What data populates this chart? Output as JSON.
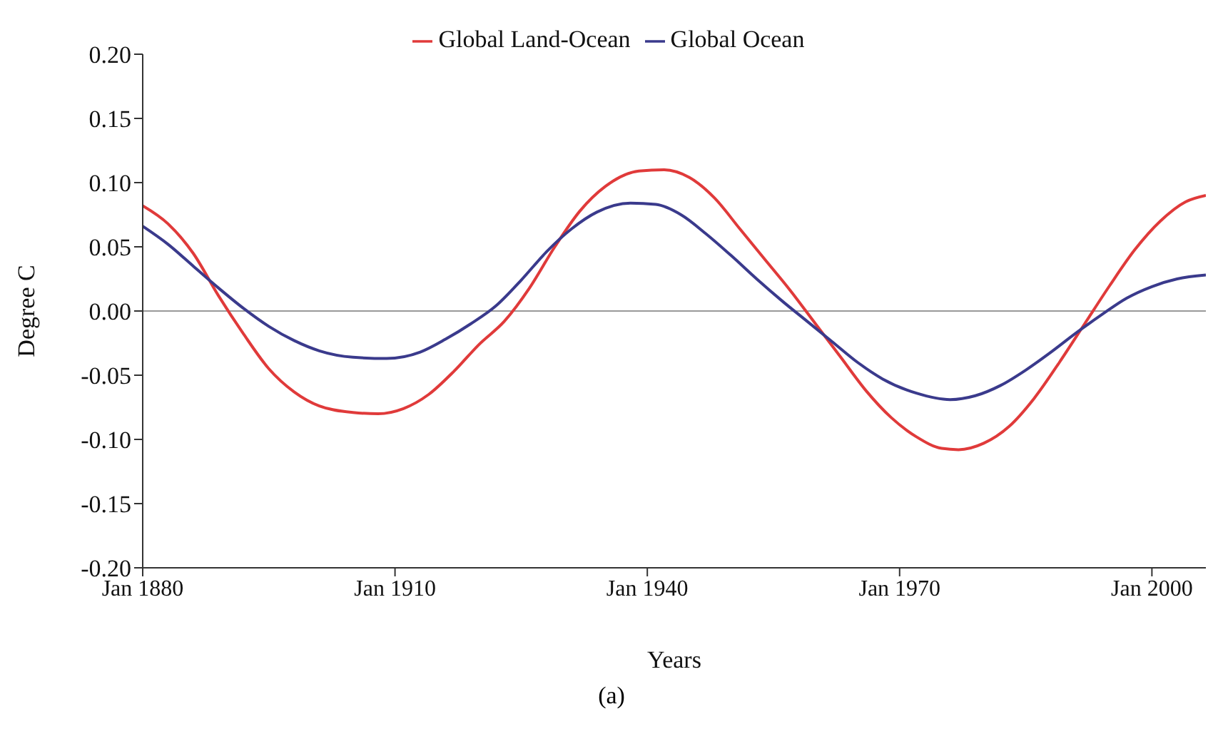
{
  "chart_data": {
    "type": "line",
    "xlabel": "Years",
    "ylabel": "Degree C",
    "annotations": [
      "(a)"
    ],
    "xlim": [
      "1880-01",
      "2006-06"
    ],
    "xticks": [
      {
        "value": "1880-01",
        "label": "Jan 1880"
      },
      {
        "value": "1910-01",
        "label": "Jan 1910"
      },
      {
        "value": "1940-01",
        "label": "Jan 1940"
      },
      {
        "value": "1970-01",
        "label": "Jan 1970"
      },
      {
        "value": "2000-01",
        "label": "Jan 2000"
      }
    ],
    "ylim": [
      -0.2,
      0.2
    ],
    "yticks": [
      {
        "value": -0.2,
        "label": "-0.20"
      },
      {
        "value": -0.15,
        "label": "-0.15"
      },
      {
        "value": -0.1,
        "label": "-0.10"
      },
      {
        "value": -0.05,
        "label": "-0.05"
      },
      {
        "value": 0,
        "label": "0.00"
      },
      {
        "value": 0.05,
        "label": "0.05"
      },
      {
        "value": 0.1,
        "label": "0.10"
      },
      {
        "value": 0.15,
        "label": "0.15"
      },
      {
        "value": 0.2,
        "label": "0.20"
      }
    ],
    "ref_lines": [
      {
        "axis": "y",
        "value": 0,
        "color": "#999999"
      }
    ],
    "legend": "top",
    "marker": "none",
    "series": [
      {
        "name": "Global Land-Ocean",
        "color": "#e03a3a",
        "x": [
          "1880-01",
          "1883-01",
          "1886-01",
          "1889-01",
          "1892-01",
          "1895-01",
          "1898-01",
          "1901-01",
          "1905-01",
          "1908-01",
          "1911-01",
          "1914-01",
          "1917-01",
          "1920-01",
          "1923-01",
          "1926-01",
          "1929-01",
          "1932-01",
          "1935-01",
          "1939-01",
          "1942-01",
          "1945-01",
          "1948-01",
          "1951-01",
          "1954-01",
          "1957-01",
          "1960-01",
          "1963-01",
          "1966-01",
          "1969-01",
          "1972-01",
          "1975-01",
          "1977-01",
          "1980-01",
          "1983-01",
          "1986-01",
          "1989-01",
          "1992-01",
          "1995-01",
          "1998-01",
          "2001-01",
          "2004-01",
          "2006-06"
        ],
        "values": [
          0.082,
          0.068,
          0.045,
          0.012,
          -0.018,
          -0.045,
          -0.063,
          -0.074,
          -0.079,
          -0.08,
          -0.076,
          -0.065,
          -0.047,
          -0.026,
          -0.008,
          0.018,
          0.05,
          0.078,
          0.097,
          0.109,
          0.11,
          0.104,
          0.088,
          0.064,
          0.04,
          0.016,
          -0.01,
          -0.036,
          -0.062,
          -0.083,
          -0.098,
          -0.107,
          -0.108,
          -0.103,
          -0.09,
          -0.068,
          -0.04,
          -0.01,
          0.02,
          0.048,
          0.07,
          0.085,
          0.09
        ]
      },
      {
        "name": "Global Ocean",
        "color": "#3a3a8c",
        "x": [
          "1880-01",
          "1883-01",
          "1886-01",
          "1889-01",
          "1892-01",
          "1895-01",
          "1898-01",
          "1901-01",
          "1905-01",
          "1909-01",
          "1913-01",
          "1916-01",
          "1919-01",
          "1922-01",
          "1925-01",
          "1928-01",
          "1931-01",
          "1934-01",
          "1938-01",
          "1941-01",
          "1944-01",
          "1947-01",
          "1950-01",
          "1953-01",
          "1956-01",
          "1959-01",
          "1962-01",
          "1965-01",
          "1968-01",
          "1972-01",
          "1976-01",
          "1979-01",
          "1982-01",
          "1985-01",
          "1988-01",
          "1991-01",
          "1994-01",
          "1997-01",
          "2000-01",
          "2003-01",
          "2006-06"
        ],
        "values": [
          0.066,
          0.052,
          0.035,
          0.018,
          0.002,
          -0.012,
          -0.023,
          -0.031,
          -0.036,
          -0.037,
          -0.032,
          -0.022,
          -0.01,
          0.004,
          0.024,
          0.046,
          0.064,
          0.077,
          0.084,
          0.083,
          0.075,
          0.06,
          0.043,
          0.025,
          0.008,
          -0.008,
          -0.024,
          -0.04,
          -0.053,
          -0.064,
          -0.069,
          -0.066,
          -0.058,
          -0.046,
          -0.032,
          -0.017,
          -0.003,
          0.01,
          0.019,
          0.025,
          0.028
        ]
      }
    ]
  }
}
